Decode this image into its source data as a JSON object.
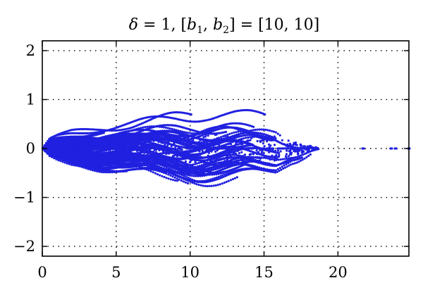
{
  "chart_data": {
    "type": "scatter",
    "title_parts": {
      "delta": "δ",
      "eq1": " = 1, [",
      "b1": "b",
      "sub1": "1",
      "comma": ", ",
      "b2": "b",
      "sub2": "2",
      "eq2": "] = [10, 10]"
    },
    "xlabel": "",
    "ylabel": "",
    "xlim": [
      0,
      24.8
    ],
    "ylim": [
      -2.2,
      2.2
    ],
    "x_ticks": [
      0,
      5,
      10,
      15,
      20
    ],
    "y_ticks": [
      -2,
      -1,
      0,
      1,
      2
    ],
    "x_tick_labels": [
      "0",
      "5",
      "10",
      "15",
      "20"
    ],
    "y_tick_labels": [
      "−2",
      "−1",
      "0",
      "1",
      "2"
    ],
    "grid": true,
    "point_color": "#2020e0",
    "series": [
      {
        "values_description_free": true,
        "cloud": {
          "envelope": [
            [
              0.0,
              0.0
            ],
            [
              0.5,
              0.22
            ],
            [
              1,
              0.3
            ],
            [
              2,
              0.4
            ],
            [
              3,
              0.46
            ],
            [
              4,
              0.52
            ],
            [
              5,
              0.56
            ],
            [
              6,
              0.6
            ],
            [
              7,
              0.66
            ],
            [
              8,
              0.72
            ],
            [
              9,
              0.78
            ],
            [
              10,
              0.82
            ],
            [
              11,
              0.86
            ],
            [
              12,
              0.87
            ],
            [
              13,
              0.85
            ],
            [
              14,
              0.82
            ],
            [
              15,
              0.78
            ],
            [
              15.8,
              0.72
            ],
            [
              16.3,
              0.55
            ],
            [
              16.8,
              0.42
            ],
            [
              17.3,
              0.35
            ],
            [
              17.8,
              0.25
            ],
            [
              18.3,
              0.12
            ],
            [
              18.7,
              0.04
            ]
          ]
        },
        "isolated_points": [
          [
            21.7,
            0.0
          ],
          [
            23.6,
            0.0
          ],
          [
            23.9,
            0.0
          ],
          [
            24.8,
            0.0
          ]
        ]
      }
    ]
  }
}
